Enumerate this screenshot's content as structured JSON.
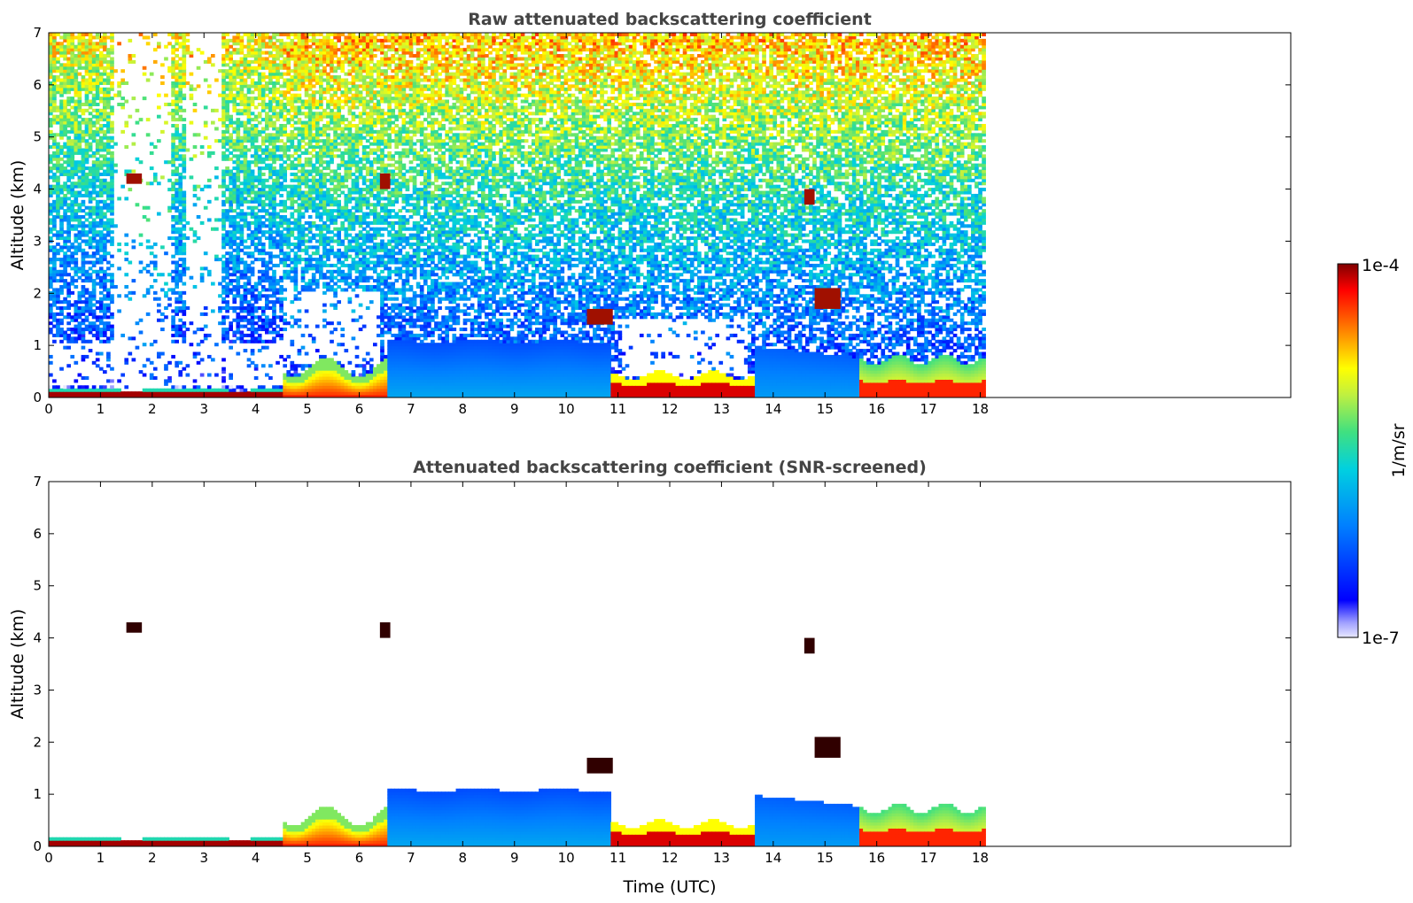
{
  "chart_data": [
    {
      "type": "heatmap",
      "title": "Raw attenuated backscattering coefficient",
      "xlabel": "",
      "ylabel": "Altitude (km)",
      "xlim": [
        0,
        24
      ],
      "ylim": [
        0,
        7
      ],
      "x_ticks": [
        "0",
        "1",
        "2",
        "3",
        "4",
        "5",
        "6",
        "7",
        "8",
        "9",
        "10",
        "11",
        "12",
        "13",
        "14",
        "15",
        "16",
        "17",
        "18"
      ],
      "y_ticks": [
        "0",
        "1",
        "2",
        "3",
        "4",
        "5",
        "6",
        "7"
      ],
      "data_end_time": 18.1,
      "features": [
        {
          "t0": 0.0,
          "t1": 4.5,
          "top": 0.12,
          "level": 1.0,
          "kind": "surface-layer"
        },
        {
          "t0": 4.6,
          "t1": 6.5,
          "top": 0.6,
          "level": 0.9,
          "kind": "boundary-layer"
        },
        {
          "t0": 6.5,
          "t1": 10.8,
          "top": 1.1,
          "level": 0.25,
          "kind": "aerosol"
        },
        {
          "t0": 10.8,
          "t1": 13.6,
          "top": 0.4,
          "level": 0.85,
          "kind": "boundary-layer"
        },
        {
          "t0": 13.6,
          "t1": 15.6,
          "top": 0.9,
          "level": 0.3,
          "kind": "aerosol"
        },
        {
          "t0": 15.6,
          "t1": 18.1,
          "top": 0.7,
          "level": 0.8,
          "kind": "boundary-layer"
        },
        {
          "t0": 1.5,
          "t1": 1.8,
          "top": 4.3,
          "bottom": 4.1,
          "level": 1.0,
          "kind": "cloud"
        },
        {
          "t0": 6.4,
          "t1": 6.6,
          "top": 4.3,
          "bottom": 4.0,
          "level": 1.0,
          "kind": "cloud"
        },
        {
          "t0": 10.4,
          "t1": 10.9,
          "top": 1.7,
          "bottom": 1.4,
          "level": 1.0,
          "kind": "cloud"
        },
        {
          "t0": 14.6,
          "t1": 14.8,
          "top": 4.0,
          "bottom": 3.7,
          "level": 1.0,
          "kind": "cloud"
        },
        {
          "t0": 14.8,
          "t1": 15.3,
          "top": 2.1,
          "bottom": 1.7,
          "level": 1.0,
          "kind": "cloud"
        }
      ]
    },
    {
      "type": "heatmap",
      "title": "Attenuated backscattering coefficient (SNR-screened)",
      "xlabel": "Time (UTC)",
      "ylabel": "Altitude (km)",
      "xlim": [
        0,
        24
      ],
      "ylim": [
        0,
        7
      ],
      "x_ticks": [
        "0",
        "1",
        "2",
        "3",
        "4",
        "5",
        "6",
        "7",
        "8",
        "9",
        "10",
        "11",
        "12",
        "13",
        "14",
        "15",
        "16",
        "17",
        "18"
      ],
      "y_ticks": [
        "0",
        "1",
        "2",
        "3",
        "4",
        "5",
        "6",
        "7"
      ],
      "data_end_time": 18.1
    }
  ],
  "colorbar": {
    "label": "1/m/sr",
    "max_label": "1e-4",
    "min_label": "1e-7",
    "scale": "log",
    "range": [
      1e-07,
      0.0001
    ]
  }
}
